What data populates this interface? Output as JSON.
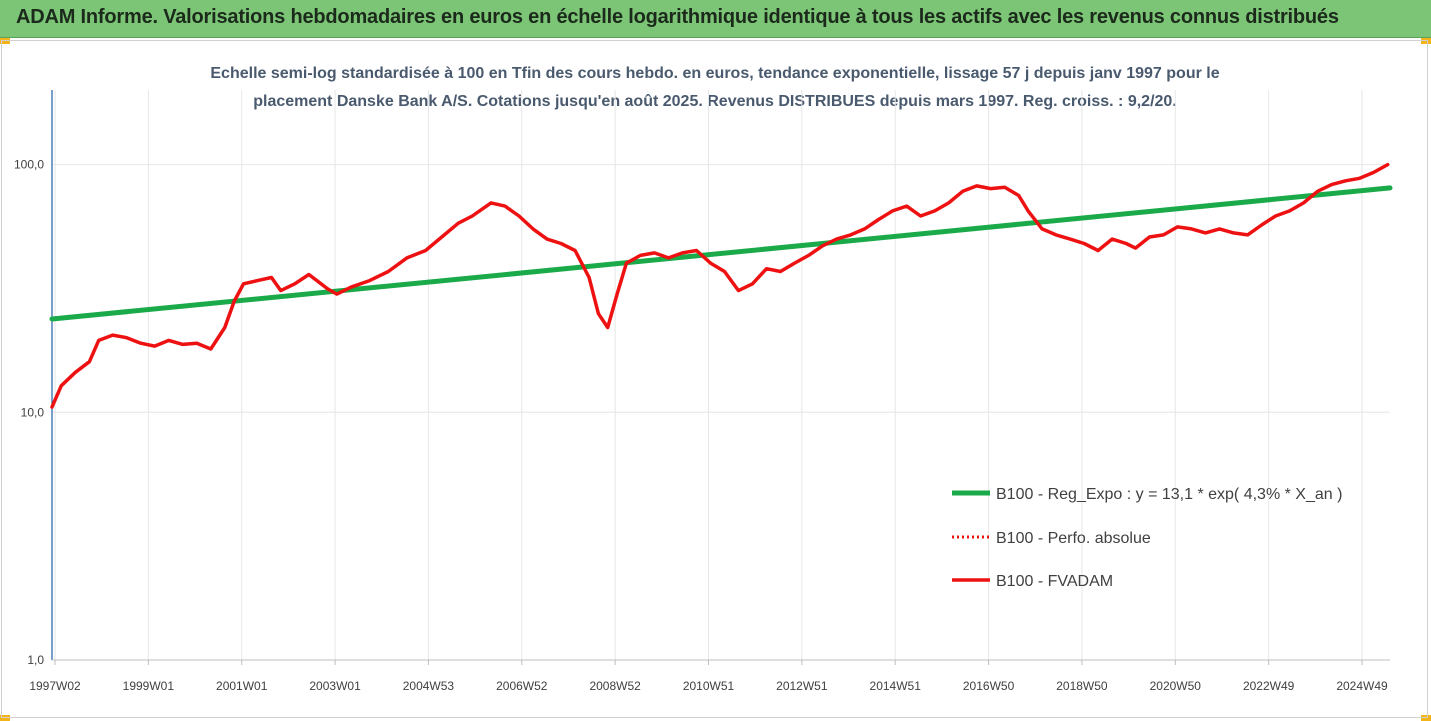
{
  "header": {
    "title": "ADAM Informe. Valorisations hebdomadaires en euros en échelle logarithmique identique à tous les actifs avec les revenus connus distribués"
  },
  "colors": {
    "header_bg": "#7cc576",
    "accent": "#f2b418",
    "green_series": "#1aaa4a",
    "red_series": "#ee1111"
  },
  "chart_data": {
    "type": "line",
    "title_line1": "Echelle semi-log standardisée à 100 en Tfin des cours hebdo. en euros, tendance exponentielle, lissage 57 j depuis janv 1997 pour le",
    "title_line2": "placement Danske Bank A/S. Cotations jusqu'en août 2025. Revenus DISTRIBUES depuis mars 1997. Reg. croiss. : 9,2/20.",
    "y_scale": "log",
    "ylim": [
      1,
      200
    ],
    "y_ticks": [
      "1,0",
      "10,0",
      "100,0"
    ],
    "xlim": [
      1997.0,
      2025.65
    ],
    "x_ticks": [
      "1997W02",
      "1999W01",
      "2001W01",
      "2003W01",
      "2004W53",
      "2006W52",
      "2008W52",
      "2010W51",
      "2012W51",
      "2014W51",
      "2016W50",
      "2018W50",
      "2020W50",
      "2022W49",
      "2024W49"
    ],
    "grid": "vertical",
    "legend_position": "right",
    "series": [
      {
        "name": "B100 - Reg_Expo : y = 13,1 * exp( 4,3% *  X_an )",
        "style": "solid-thick",
        "color": "#1aaa4a",
        "x": [
          1997.0,
          2025.65
        ],
        "y": [
          23.8,
          80.5
        ]
      },
      {
        "name": "B100 - Perfo. absolue",
        "style": "dotted",
        "color": "#ee1111",
        "x": [],
        "y": []
      },
      {
        "name": "B100 - FVADAM",
        "style": "solid",
        "color": "#ee1111",
        "x": [
          1997.0,
          1997.2,
          1997.5,
          1997.8,
          1998.0,
          1998.3,
          1998.6,
          1998.9,
          1999.2,
          1999.5,
          1999.8,
          2000.1,
          2000.4,
          2000.7,
          2000.9,
          2001.1,
          2001.4,
          2001.7,
          2001.9,
          2002.2,
          2002.5,
          2002.9,
          2003.1,
          2003.4,
          2003.8,
          2004.2,
          2004.6,
          2005.0,
          2005.4,
          2005.7,
          2006.0,
          2006.4,
          2006.7,
          2007.0,
          2007.3,
          2007.6,
          2007.9,
          2008.2,
          2008.5,
          2008.7,
          2008.9,
          2009.1,
          2009.3,
          2009.6,
          2009.9,
          2010.2,
          2010.5,
          2010.8,
          2011.1,
          2011.4,
          2011.7,
          2012.0,
          2012.3,
          2012.6,
          2012.9,
          2013.2,
          2013.5,
          2013.8,
          2014.1,
          2014.4,
          2014.7,
          2015.0,
          2015.3,
          2015.6,
          2015.9,
          2016.2,
          2016.5,
          2016.8,
          2017.1,
          2017.4,
          2017.7,
          2017.9,
          2018.2,
          2018.5,
          2018.8,
          2019.1,
          2019.4,
          2019.7,
          2020.0,
          2020.2,
          2020.5,
          2020.8,
          2021.1,
          2021.4,
          2021.7,
          2022.0,
          2022.3,
          2022.6,
          2022.9,
          2023.2,
          2023.5,
          2023.8,
          2024.1,
          2024.4,
          2024.7,
          2025.0,
          2025.3,
          2025.6
        ],
        "y": [
          10.5,
          12.8,
          14.5,
          16.0,
          19.5,
          20.5,
          20.0,
          19.0,
          18.5,
          19.5,
          18.8,
          19.0,
          18.0,
          22.0,
          28.0,
          33.0,
          34.0,
          35.0,
          31.0,
          33.0,
          36.0,
          31.5,
          30.0,
          32.0,
          34.0,
          37.0,
          42.0,
          45.0,
          52.0,
          58.0,
          62.0,
          70.0,
          68.0,
          62.0,
          55.0,
          50.0,
          48.0,
          45.0,
          35.0,
          25.0,
          22.0,
          30.0,
          40.0,
          43.0,
          44.0,
          42.0,
          44.0,
          45.0,
          40.0,
          37.0,
          31.0,
          33.0,
          38.0,
          37.0,
          40.0,
          43.0,
          47.0,
          50.0,
          52.0,
          55.0,
          60.0,
          65.0,
          68.0,
          62.0,
          65.0,
          70.0,
          78.0,
          82.0,
          80.0,
          81.0,
          75.0,
          65.0,
          55.0,
          52.0,
          50.0,
          48.0,
          45.0,
          50.0,
          48.0,
          46.0,
          51.0,
          52.0,
          56.0,
          55.0,
          53.0,
          55.0,
          53.0,
          52.0,
          57.0,
          62.0,
          65.0,
          70.0,
          78.0,
          83.0,
          86.0,
          88.0,
          93.0,
          100.0
        ]
      }
    ]
  }
}
